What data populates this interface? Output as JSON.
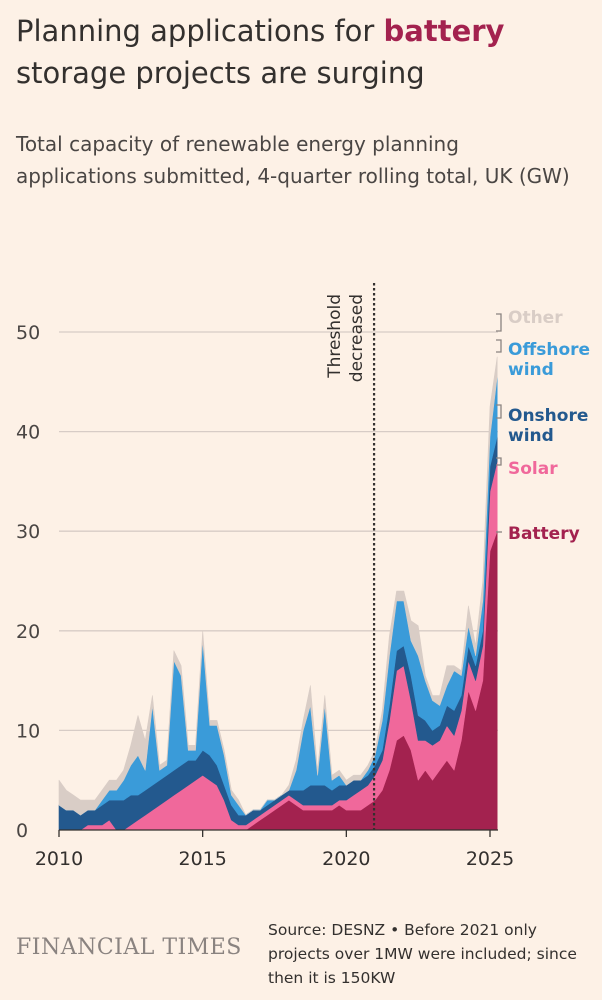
{
  "header": {
    "title_pre": "Planning applications for ",
    "title_highlight": "battery",
    "title_post": " storage projects are surging",
    "subtitle": "Total capacity of renewable energy planning applications submitted, 4-quarter rolling total, UK (GW)"
  },
  "footer": {
    "brand": "FINANCIAL TIMES",
    "source": "Source: DESNZ • Before 2021 only projects over 1MW were included; since then it is 150KW"
  },
  "colors": {
    "background": "#fdf1e6",
    "battery": "#a3224f",
    "solar": "#f0689b",
    "onshore_wind": "#23598e",
    "offshore_wind": "#3a9bd9",
    "other": "#d9cdc6",
    "grid": "#d7ccc6",
    "annotation": "#33302e"
  },
  "chart_data": {
    "type": "area",
    "stacked": true,
    "x": [
      2010.0,
      2010.25,
      2010.5,
      2010.75,
      2011.0,
      2011.25,
      2011.5,
      2011.75,
      2012.0,
      2012.25,
      2012.5,
      2012.75,
      2013.0,
      2013.25,
      2013.5,
      2013.75,
      2014.0,
      2014.25,
      2014.5,
      2014.75,
      2015.0,
      2015.25,
      2015.5,
      2015.75,
      2016.0,
      2016.25,
      2016.5,
      2016.75,
      2017.0,
      2017.25,
      2017.5,
      2017.75,
      2018.0,
      2018.25,
      2018.5,
      2018.75,
      2019.0,
      2019.25,
      2019.5,
      2019.75,
      2020.0,
      2020.25,
      2020.5,
      2020.75,
      2021.0,
      2021.25,
      2021.5,
      2021.75,
      2022.0,
      2022.25,
      2022.5,
      2022.75,
      2023.0,
      2023.25,
      2023.5,
      2023.75,
      2024.0,
      2024.25,
      2024.5,
      2024.75,
      2025.0,
      2025.25
    ],
    "series": [
      {
        "name": "Battery",
        "color_key": "battery",
        "values": [
          0,
          0,
          0,
          0,
          0,
          0,
          0,
          0,
          0,
          0,
          0,
          0,
          0,
          0,
          0,
          0,
          0,
          0,
          0,
          0,
          0,
          0,
          0,
          0,
          0,
          0,
          0,
          0.5,
          1,
          1.5,
          2,
          2.5,
          3,
          2.5,
          2,
          2,
          2,
          2,
          2,
          2.5,
          2,
          2,
          2,
          2.5,
          3,
          4,
          6,
          9,
          9.5,
          8,
          5,
          6,
          5,
          6,
          7,
          6,
          9,
          14,
          12,
          15,
          28,
          30
        ]
      },
      {
        "name": "Solar",
        "color_key": "solar",
        "values": [
          0,
          0,
          0,
          0,
          0.5,
          0.5,
          0.5,
          1,
          0,
          0,
          0.5,
          1,
          1.5,
          2,
          2.5,
          3,
          3.5,
          4,
          4.5,
          5,
          5.5,
          5,
          4.5,
          3,
          1,
          0.5,
          0.5,
          0.5,
          0.5,
          0.5,
          0.5,
          0.5,
          0.5,
          0.5,
          0.5,
          0.5,
          0.5,
          0.5,
          0.5,
          0.5,
          1,
          1.5,
          2,
          2,
          2.5,
          3,
          5,
          7,
          7,
          5,
          4,
          3,
          3.5,
          3,
          3.5,
          3.5,
          3,
          3,
          3,
          3.5,
          6,
          7
        ]
      },
      {
        "name": "Onshore wind",
        "color_key": "onshore_wind",
        "values": [
          2.5,
          2,
          2,
          1.5,
          1.5,
          1.5,
          2,
          2,
          3,
          3,
          3,
          2.5,
          2.5,
          2.5,
          2.5,
          2.5,
          2.5,
          2.5,
          2.5,
          2,
          2.5,
          2.5,
          2,
          1.5,
          1.5,
          1,
          1,
          1,
          0.5,
          0.5,
          0.5,
          0.5,
          0.5,
          1,
          1.5,
          2,
          2,
          2,
          1.5,
          1.5,
          1.5,
          1.5,
          1,
          1,
          1,
          1,
          1.5,
          2,
          2,
          2.5,
          2.5,
          2,
          1.5,
          1.5,
          2,
          2.5,
          1.5,
          1.5,
          1.5,
          1.5,
          2.5,
          2.5
        ]
      },
      {
        "name": "Offshore wind",
        "color_key": "offshore_wind",
        "values": [
          0,
          0,
          0,
          0,
          0,
          0,
          0.5,
          1,
          1,
          2,
          3,
          4,
          2,
          8,
          1,
          1,
          11,
          9,
          1,
          1,
          11,
          3,
          4,
          3,
          1,
          1,
          0,
          0,
          0,
          0.5,
          0,
          0,
          0,
          2,
          6,
          8,
          1,
          8,
          1,
          1,
          0,
          0,
          0,
          0.5,
          1,
          3,
          5,
          5,
          4.5,
          3.5,
          6,
          4,
          3,
          2,
          2,
          4,
          2,
          2,
          1,
          3,
          3,
          6
        ]
      },
      {
        "name": "Other",
        "color_key": "other",
        "values": [
          2.5,
          2,
          1.5,
          1.5,
          1,
          1,
          1,
          1,
          1,
          1,
          2,
          4,
          3,
          1,
          0.5,
          0.5,
          1,
          1,
          0.5,
          0.5,
          1,
          0.5,
          0.5,
          0.5,
          0.5,
          0.5,
          0,
          0,
          0,
          0,
          0,
          0,
          0.5,
          1,
          1,
          2,
          0.5,
          1,
          0.5,
          0.5,
          0.5,
          0.5,
          0.5,
          0.5,
          0.5,
          1,
          2,
          1,
          1,
          2,
          3,
          0.5,
          0.5,
          1,
          2,
          0.5,
          0.5,
          2,
          1,
          2,
          3,
          2
        ]
      }
    ],
    "xlim": [
      2010,
      2025.4
    ],
    "ylim": [
      0,
      55
    ],
    "x_ticks": [
      2010,
      2015,
      2020,
      2025
    ],
    "y_ticks": [
      0,
      10,
      20,
      30,
      40,
      50
    ],
    "grid": true,
    "legend": "direct labels at right end",
    "annotation": {
      "x": 2021.0,
      "text_line1": "Threshold",
      "text_line2": "decreased"
    },
    "labels": [
      {
        "series": "Other",
        "text": [
          "Other"
        ],
        "color_key": "other"
      },
      {
        "series": "Offshore wind",
        "text": [
          "Offshore",
          "wind"
        ],
        "color_key": "offshore_wind"
      },
      {
        "series": "Onshore wind",
        "text": [
          "Onshore",
          "wind"
        ],
        "color_key": "onshore_wind"
      },
      {
        "series": "Solar",
        "text": [
          "Solar"
        ],
        "color_key": "solar"
      },
      {
        "series": "Battery",
        "text": [
          "Battery"
        ],
        "color_key": "battery"
      }
    ]
  }
}
